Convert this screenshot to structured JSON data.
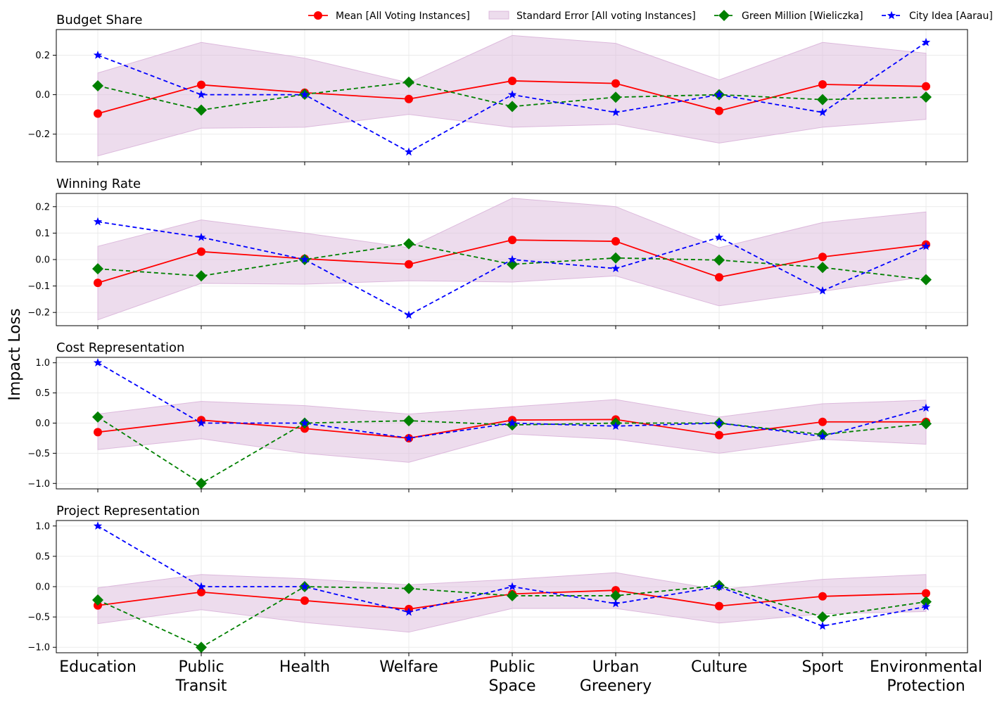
{
  "chart_data": {
    "type": "line",
    "ylabel": "Impact Loss",
    "categories": [
      [
        "Education"
      ],
      [
        "Public",
        "Transit"
      ],
      [
        "Health"
      ],
      [
        "Welfare"
      ],
      [
        "Public",
        "Space"
      ],
      [
        "Urban",
        "Greenery"
      ],
      [
        "Culture"
      ],
      [
        "Sport"
      ],
      [
        "Environmental",
        "Protection"
      ]
    ],
    "legend": [
      {
        "key": "mean",
        "label": "Mean [All Voting Instances]"
      },
      {
        "key": "se",
        "label": "Standard Error [All voting Instances]"
      },
      {
        "key": "green",
        "label": "Green Million [Wieliczka]"
      },
      {
        "key": "city",
        "label": "City Idea [Aarau]"
      }
    ],
    "colors": {
      "mean": "#ff0000",
      "green": "#008000",
      "city": "#0000ff",
      "band": "#dcb9dc"
    },
    "panels": [
      {
        "title": "Budget Share",
        "ylim": [
          -0.34,
          0.33
        ],
        "yticks": [
          -0.2,
          0.0,
          0.2
        ],
        "ytick_labels": [
          "−0.2",
          "0.0",
          "0.2"
        ],
        "mean": [
          -0.096,
          0.05,
          0.01,
          -0.022,
          0.07,
          0.057,
          -0.082,
          0.052,
          0.042
        ],
        "se_upper": [
          0.11,
          0.265,
          0.185,
          0.06,
          0.3,
          0.26,
          0.075,
          0.265,
          0.21
        ],
        "se_lower": [
          -0.31,
          -0.17,
          -0.165,
          -0.1,
          -0.165,
          -0.15,
          -0.245,
          -0.165,
          -0.125
        ],
        "green": [
          0.045,
          -0.078,
          0.002,
          0.063,
          -0.06,
          -0.013,
          0.0,
          -0.025,
          -0.012
        ],
        "city": [
          0.2,
          0.0,
          0.0,
          -0.29,
          0.0,
          -0.09,
          0.0,
          -0.09,
          0.265
        ]
      },
      {
        "title": "Winning Rate",
        "ylim": [
          -0.25,
          0.25
        ],
        "yticks": [
          -0.2,
          -0.1,
          0.0,
          0.1,
          0.2
        ],
        "ytick_labels": [
          "−0.2",
          "−0.1",
          "0.0",
          "0.1",
          "0.2"
        ],
        "mean": [
          -0.088,
          0.03,
          0.003,
          -0.018,
          0.074,
          0.069,
          -0.067,
          0.01,
          0.057
        ],
        "se_upper": [
          0.05,
          0.15,
          0.1,
          0.045,
          0.232,
          0.2,
          0.045,
          0.14,
          0.18
        ],
        "se_lower": [
          -0.228,
          -0.09,
          -0.093,
          -0.08,
          -0.085,
          -0.062,
          -0.175,
          -0.12,
          -0.065
        ],
        "green": [
          -0.035,
          -0.062,
          0.0,
          0.06,
          -0.018,
          0.006,
          -0.002,
          -0.03,
          -0.076
        ],
        "city": [
          0.143,
          0.084,
          0.0,
          -0.21,
          0.0,
          -0.034,
          0.084,
          -0.118,
          0.05
        ]
      },
      {
        "title": "Cost Representation",
        "ylim": [
          -1.09,
          1.09
        ],
        "yticks": [
          -1.0,
          -0.5,
          0.0,
          0.5,
          1.0
        ],
        "ytick_labels": [
          "−1.0",
          "−0.5",
          "0.0",
          "0.5",
          "1.0"
        ],
        "mean": [
          -0.15,
          0.05,
          -0.09,
          -0.25,
          0.05,
          0.06,
          -0.2,
          0.02,
          0.02
        ],
        "se_upper": [
          0.15,
          0.36,
          0.29,
          0.15,
          0.27,
          0.39,
          0.1,
          0.32,
          0.38
        ],
        "se_lower": [
          -0.44,
          -0.26,
          -0.5,
          -0.65,
          -0.18,
          -0.27,
          -0.5,
          -0.27,
          -0.35
        ],
        "green": [
          0.1,
          -1.0,
          0.0,
          0.04,
          -0.03,
          0.0,
          0.0,
          -0.19,
          -0.01
        ],
        "city": [
          1.0,
          0.0,
          0.0,
          -0.25,
          0.0,
          -0.05,
          0.0,
          -0.22,
          0.25
        ]
      },
      {
        "title": "Project Representation",
        "ylim": [
          -1.09,
          1.09
        ],
        "yticks": [
          -1.0,
          -0.5,
          0.0,
          0.5,
          1.0
        ],
        "ytick_labels": [
          "−1.0",
          "−0.5",
          "0.0",
          "0.5",
          "1.0"
        ],
        "mean": [
          -0.31,
          -0.09,
          -0.23,
          -0.37,
          -0.12,
          -0.06,
          -0.32,
          -0.16,
          -0.11
        ],
        "se_upper": [
          -0.02,
          0.2,
          0.13,
          0.03,
          0.12,
          0.23,
          -0.05,
          0.12,
          0.2
        ],
        "se_lower": [
          -0.61,
          -0.38,
          -0.59,
          -0.75,
          -0.36,
          -0.36,
          -0.6,
          -0.45,
          -0.41
        ],
        "green": [
          -0.22,
          -1.0,
          0.0,
          -0.03,
          -0.15,
          -0.15,
          0.02,
          -0.5,
          -0.25
        ],
        "city": [
          1.0,
          0.0,
          0.0,
          -0.42,
          0.0,
          -0.28,
          0.0,
          -0.65,
          -0.33
        ]
      }
    ]
  }
}
